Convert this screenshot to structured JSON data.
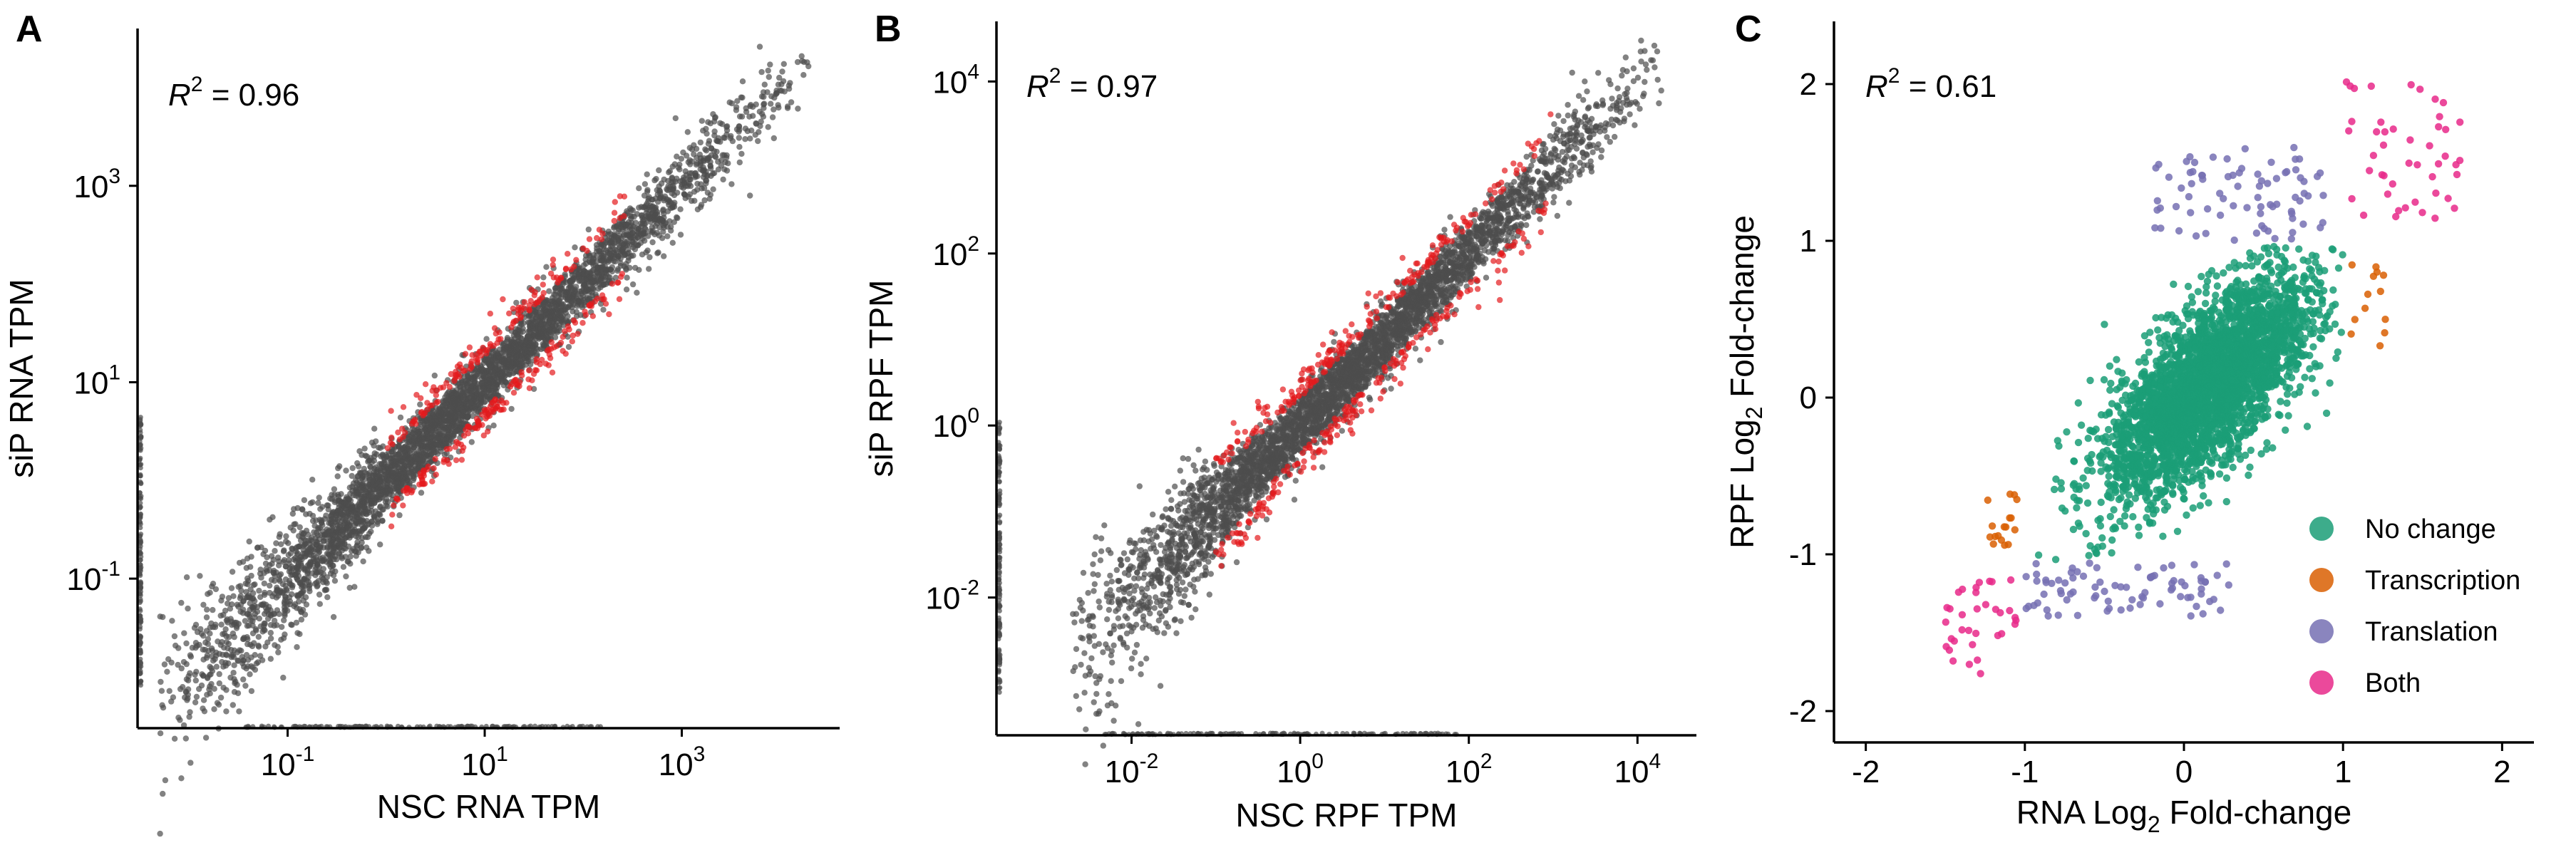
{
  "chart_data": [
    {
      "panel": "A",
      "type": "scatter",
      "xlabel": "NSC RNA TPM",
      "ylabel": "siP RNA TPM",
      "scale": "log10",
      "xlim": [
        0.003,
        40000
      ],
      "ylim": [
        0.003,
        40000
      ],
      "x_ticks": [
        {
          "value": 0.1,
          "base": "10",
          "exp": "-1"
        },
        {
          "value": 10,
          "base": "10",
          "exp": "1"
        },
        {
          "value": 1000,
          "base": "10",
          "exp": "3"
        }
      ],
      "y_ticks": [
        {
          "value": 0.1,
          "base": "10",
          "exp": "-1"
        },
        {
          "value": 10,
          "base": "10",
          "exp": "1"
        },
        {
          "value": 1000,
          "base": "10",
          "exp": "3"
        }
      ],
      "annotation": {
        "label": "R",
        "sup": "2",
        "value": "=  0.96"
      },
      "trend": {
        "x_range": [
          0.005,
          20000
        ],
        "spread_dex": 0.2,
        "highlight_range": [
          1,
          300
        ]
      },
      "colors": {
        "points": "#4d4d4d",
        "highlight": "#e41a1c"
      },
      "grid": false
    },
    {
      "panel": "B",
      "type": "scatter",
      "xlabel": "NSC RPF TPM",
      "ylabel": "siP RPF TPM",
      "scale": "log10",
      "xlim": [
        0.00025,
        50000
      ],
      "ylim": [
        0.00025,
        50000
      ],
      "x_ticks": [
        {
          "value": 0.01,
          "base": "10",
          "exp": "-2"
        },
        {
          "value": 1,
          "base": "10",
          "exp": "0"
        },
        {
          "value": 100,
          "base": "10",
          "exp": "2"
        },
        {
          "value": 10000,
          "base": "10",
          "exp": "4"
        }
      ],
      "y_ticks": [
        {
          "value": 0.01,
          "base": "10",
          "exp": "-2"
        },
        {
          "value": 1,
          "base": "10",
          "exp": "0"
        },
        {
          "value": 100,
          "base": "10",
          "exp": "2"
        },
        {
          "value": 10000,
          "base": "10",
          "exp": "4"
        }
      ],
      "annotation": {
        "label": "R",
        "sup": "2",
        "value": "=  0.97"
      },
      "trend": {
        "x_range": [
          0.002,
          20000
        ],
        "spread_dex": 0.24,
        "highlight_range": [
          0.1,
          1000
        ]
      },
      "colors": {
        "points": "#4d4d4d",
        "highlight": "#e41a1c"
      },
      "grid": false
    },
    {
      "panel": "C",
      "type": "scatter",
      "xlabel": "RNA Log2 Fold-change",
      "ylabel": "RPF Log2 Fold-change",
      "xlabel_parts": {
        "pre": "RNA Log",
        "sub": "2",
        "post": " Fold-change"
      },
      "ylabel_parts": {
        "pre": "RPF Log",
        "sub": "2",
        "post": " Fold-change"
      },
      "xlim": [
        -2.2,
        2.2
      ],
      "ylim": [
        -2.2,
        2.4
      ],
      "x_ticks": [
        {
          "value": -2,
          "label": "-2"
        },
        {
          "value": -1,
          "label": "-1"
        },
        {
          "value": 0,
          "label": "0"
        },
        {
          "value": 1,
          "label": "1"
        },
        {
          "value": 2,
          "label": "2"
        }
      ],
      "y_ticks": [
        {
          "value": -2,
          "label": "-2"
        },
        {
          "value": -1,
          "label": "-1"
        },
        {
          "value": 0,
          "label": "0"
        },
        {
          "value": 1,
          "label": "1"
        },
        {
          "value": 2,
          "label": "2"
        }
      ],
      "annotation": {
        "label": "R",
        "sup": "2",
        "value": "=  0.61"
      },
      "legend": {
        "position": "bottom-right",
        "entries": [
          {
            "name": "No change",
            "color": "#1b9e77"
          },
          {
            "name": "Transcription",
            "color": "#d95f02"
          },
          {
            "name": "Translation",
            "color": "#7570b3"
          },
          {
            "name": "Both",
            "color": "#e7298a"
          }
        ]
      },
      "grid": false
    }
  ]
}
